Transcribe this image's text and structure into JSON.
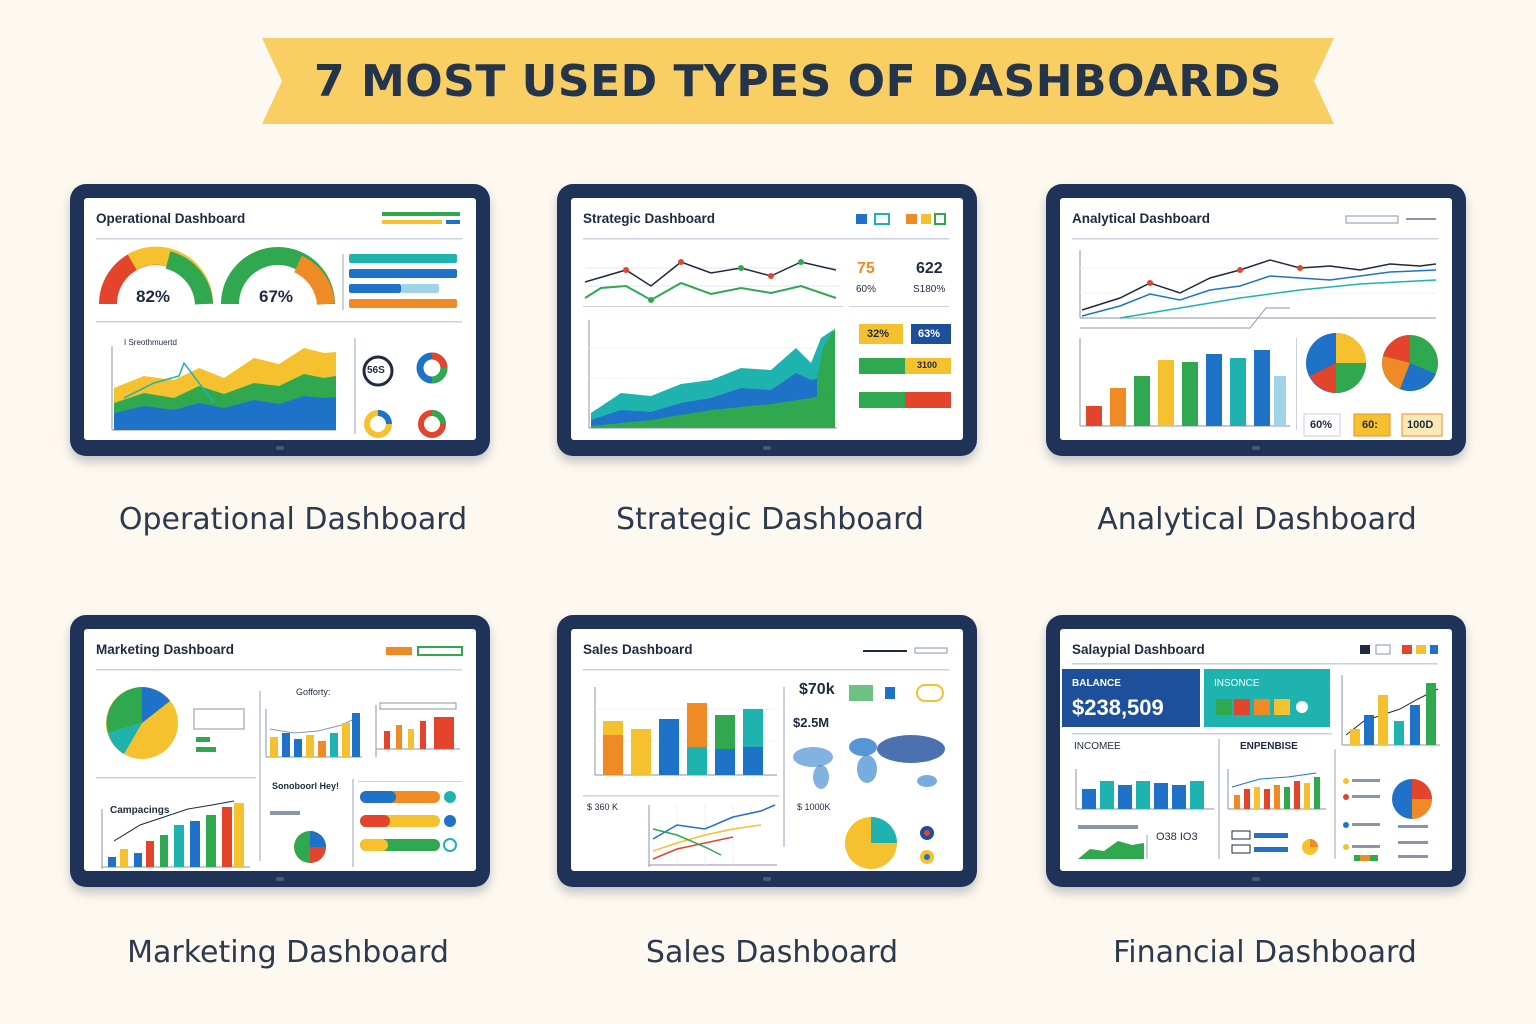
{
  "header": {
    "title": "7 MOST USED TYPES OF DASHBOARDS"
  },
  "colors": {
    "banner": "#f9cf63",
    "frame": "#1f3358",
    "text": "#2b3a4f",
    "green": "#2fa84f",
    "blue": "#1e73c8",
    "yellow": "#f5c12e",
    "orange": "#f08a24",
    "red": "#e2452b",
    "teal": "#1fb3b0"
  },
  "dashboards": [
    {
      "screen_title": "Operational Dashboard",
      "caption": "Operational Dashboard",
      "gauge1": "82%",
      "gauge2": "67%",
      "badge": "56S",
      "chart_label": "I Sreothmuertd"
    },
    {
      "screen_title": "Strategic Dashboard",
      "caption": "Strategic Dashboard",
      "kpi1": "75",
      "kpi1_sub": "60%",
      "kpi2": "622",
      "kpi2_sub": "S180%",
      "box1": "32%",
      "box2": "63%",
      "box3": "3100"
    },
    {
      "screen_title": "Analytical Dashboard",
      "caption": "Analytical Dashboard",
      "kpi1": "60%",
      "kpi2": "60:",
      "kpi3": "100D"
    },
    {
      "screen_title": "Marketing Dashboard",
      "caption": "Marketing Dashboard",
      "label1": "Gofforty:",
      "label2": "Sonoboorl Hey!",
      "label3": "Campacings"
    },
    {
      "screen_title": "Sales Dashboard",
      "caption": "Sales Dashboard",
      "kpi1": "$70k",
      "kpi2": "$2.5M",
      "left1": "$ 360 K",
      "right1": "$ 1000K"
    },
    {
      "screen_title": "Salaypial Dashboard",
      "caption": "Financial Dashboard",
      "balance_label": "BALANCE",
      "balance_value": "$238,509",
      "income_tile": "INSONCE",
      "income_label": "INCOMEE",
      "expense_label": "ENPENBISE",
      "mini_value": "O38 IO3"
    }
  ]
}
